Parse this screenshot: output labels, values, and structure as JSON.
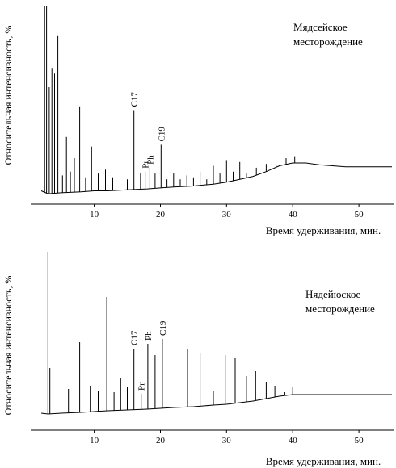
{
  "chart_data": [
    {
      "type": "line",
      "title": "Мядсейское месторождение",
      "title_lines": [
        "Мядсейское",
        "месторождение"
      ],
      "xlabel": "Время удерживания, мин.",
      "ylabel": "Относительная интенсивность, %",
      "xlim": [
        1.5,
        55
      ],
      "ylim": [
        0,
        100
      ],
      "xticks": [
        10,
        20,
        30,
        40,
        50
      ],
      "grid": false,
      "legend": "none",
      "baseline": {
        "x": [
          2,
          3,
          5,
          8,
          10,
          12,
          15,
          18,
          20,
          22,
          25,
          28,
          30,
          32,
          34,
          36,
          38,
          40,
          42,
          44,
          46,
          48,
          50,
          52,
          55
        ],
        "y": [
          4,
          2.5,
          3,
          3.5,
          4,
          4,
          4.5,
          5,
          5.5,
          6,
          6.5,
          7.5,
          8.5,
          10,
          11.5,
          14,
          17,
          18.5,
          18.5,
          17.5,
          17,
          16.5,
          16.5,
          16.5,
          16.5
        ]
      },
      "peaks": {
        "x": [
          2.5,
          2.8,
          3.2,
          3.6,
          4.0,
          4.5,
          5.2,
          5.8,
          6.4,
          7.0,
          7.8,
          8.7,
          9.6,
          10.6,
          11.7,
          12.8,
          13.9,
          15.0,
          16.0,
          17.0,
          17.7,
          18.4,
          19.2,
          20.1,
          21.0,
          22.0,
          23.0,
          24.0,
          25.0,
          26.0,
          27.0,
          28.0,
          29.0,
          30.0,
          31.0,
          32.0,
          33.0,
          34.5,
          36.0,
          37.5,
          39.0,
          40.3
        ],
        "y": [
          100,
          100,
          58,
          68,
          65,
          85,
          12,
          32,
          14,
          21,
          48,
          11,
          27,
          13,
          15,
          11,
          13,
          10,
          46,
          13,
          14,
          16,
          13,
          28,
          10,
          13,
          10,
          12,
          11,
          14,
          10,
          17,
          13,
          20,
          14,
          19,
          13,
          16,
          18,
          17,
          21,
          22
        ]
      },
      "annotations": [
        {
          "text": "C17",
          "x": 16.0
        },
        {
          "text": "Pr",
          "x": 17.7
        },
        {
          "text": "Ph",
          "x": 18.4
        },
        {
          "text": "C19",
          "x": 20.1
        }
      ]
    },
    {
      "type": "line",
      "title": "Нядейюское месторождение",
      "title_lines": [
        "Нядейюское",
        "месторождение"
      ],
      "xlabel": "Время удерживания, мин.",
      "ylabel": "Относительная интенсивность, %",
      "xlim": [
        1.5,
        55
      ],
      "ylim": [
        0,
        100
      ],
      "xticks": [
        10,
        20,
        30,
        40,
        50
      ],
      "grid": false,
      "legend": "none",
      "baseline": {
        "x": [
          2,
          3,
          5,
          8,
          10,
          12,
          15,
          18,
          20,
          22,
          25,
          28,
          30,
          32,
          34,
          36,
          38,
          40,
          42,
          44,
          46,
          48,
          50,
          52,
          55
        ],
        "y": [
          0,
          -0.5,
          0,
          0.5,
          1,
          1.5,
          2,
          2.5,
          3,
          3.5,
          4,
          5,
          5.5,
          6.5,
          7.5,
          9,
          10.5,
          11.5,
          11.5,
          11.5,
          11.5,
          11.5,
          11.5,
          11.5,
          11.5
        ]
      },
      "peaks": {
        "x": [
          3.0,
          3.3,
          6.1,
          7.8,
          9.4,
          10.6,
          11.9,
          13.0,
          14.0,
          15.0,
          16.0,
          17.1,
          18.1,
          19.2,
          20.3,
          22.2,
          24.1,
          26.0,
          28.0,
          29.8,
          31.3,
          33.0,
          34.4,
          36.0,
          37.3,
          38.8,
          40.0,
          41.5
        ],
        "y": [
          100,
          28,
          15,
          44,
          17,
          14,
          72,
          13,
          22,
          16,
          40,
          12,
          43,
          36,
          46,
          40,
          40,
          37,
          14,
          36,
          34,
          23,
          26,
          19,
          17,
          13,
          16,
          11
        ]
      },
      "annotations": [
        {
          "text": "C17",
          "x": 16.0
        },
        {
          "text": "Pr",
          "x": 17.1
        },
        {
          "text": "Ph",
          "x": 18.1
        },
        {
          "text": "C19",
          "x": 20.3
        }
      ]
    }
  ]
}
